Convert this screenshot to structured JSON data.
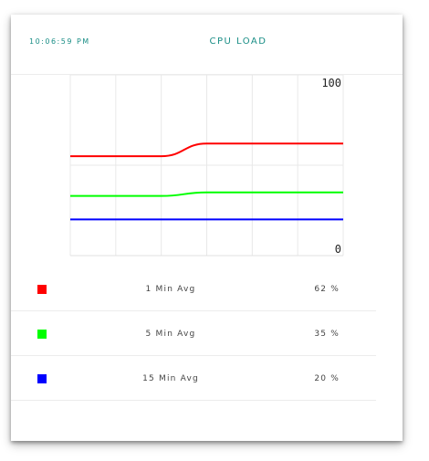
{
  "header": {
    "time": "10:06:59 PM",
    "title": "CPU LOAD"
  },
  "chart_data": {
    "type": "line",
    "title": "",
    "xlabel": "",
    "ylabel": "",
    "ylim": [
      0,
      100
    ],
    "y_tick_labels": {
      "top": "100",
      "bottom": "0"
    },
    "grid": true,
    "x": [
      0,
      1,
      2,
      3,
      4,
      5,
      6
    ],
    "series": [
      {
        "name": "1 Min Avg",
        "color": "#ff0000",
        "values": [
          55,
          55,
          55,
          62,
          62,
          62,
          62
        ]
      },
      {
        "name": "5 Min Avg",
        "color": "#00ff00",
        "values": [
          33,
          33,
          33,
          35,
          35,
          35,
          35
        ]
      },
      {
        "name": "15 Min Avg",
        "color": "#0000ff",
        "values": [
          20,
          20,
          20,
          20,
          20,
          20,
          20
        ]
      }
    ]
  },
  "legend": [
    {
      "label": "1 Min Avg",
      "value": "62 %",
      "color": "#ff0000"
    },
    {
      "label": "5 Min Avg",
      "value": "35 %",
      "color": "#00ff00"
    },
    {
      "label": "15 Min Avg",
      "value": "20 %",
      "color": "#0000ff"
    }
  ]
}
